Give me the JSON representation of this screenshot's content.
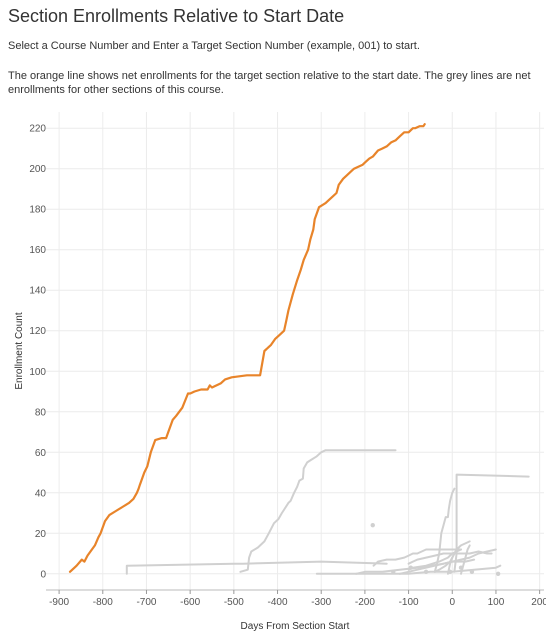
{
  "header": {
    "title": "Section Enrollments Relative to Start Date",
    "instructions": "Select a Course Number and Enter a Target Section Number (example, 001) to start.",
    "description": "The orange line shows net enrollments for the target section relative to the start date. The grey lines are net enrollments for other sections of this course."
  },
  "chart_data": {
    "type": "line",
    "xlabel": "Days From Section Start",
    "ylabel": "Enrollment Count",
    "xlim": [
      -930,
      210
    ],
    "ylim": [
      -8,
      228
    ],
    "x_ticks": [
      -900,
      -800,
      -700,
      -600,
      -500,
      -400,
      -300,
      -200,
      -100,
      0,
      100,
      200
    ],
    "y_ticks": [
      0,
      20,
      40,
      60,
      80,
      100,
      120,
      140,
      160,
      180,
      200,
      220
    ],
    "grid": true,
    "colors": {
      "target": "#E8842A",
      "other": "#d0d0d0",
      "grid": "#ececec"
    },
    "target_series": {
      "x": [
        -875,
        -860,
        -848,
        -842,
        -835,
        -825,
        -818,
        -810,
        -805,
        -795,
        -785,
        -770,
        -755,
        -740,
        -730,
        -722,
        -718,
        -715,
        -705,
        -698,
        -690,
        -680,
        -665,
        -655,
        -650,
        -640,
        -632,
        -625,
        -618,
        -605,
        -600,
        -590,
        -575,
        -560,
        -555,
        -550,
        -530,
        -520,
        -505,
        -470,
        -440,
        -430,
        -425,
        -420,
        -415,
        -405,
        -395,
        -385,
        -380,
        -375,
        -365,
        -355,
        -347,
        -340,
        -330,
        -325,
        -318,
        -315,
        -305,
        -290,
        -280,
        -275,
        -265,
        -260,
        -250,
        -240,
        -230,
        -225,
        -215,
        -205,
        -200,
        -190,
        -182,
        -170,
        -160,
        -150,
        -140,
        -130,
        -125,
        -120,
        -115,
        -110,
        -100,
        -95,
        -90,
        -85,
        -75,
        -70,
        -66,
        -63
      ],
      "y": [
        1,
        4,
        7,
        6,
        9,
        12,
        14,
        18,
        20,
        26,
        29,
        31,
        33,
        35,
        37,
        40,
        42,
        44,
        50,
        53,
        60,
        66,
        67,
        67,
        70,
        76,
        78,
        80,
        82,
        89,
        89,
        90,
        91,
        91,
        93,
        92,
        94,
        96,
        97,
        98,
        98,
        110,
        111,
        112,
        113,
        116,
        118,
        120,
        125,
        130,
        138,
        145,
        150,
        155,
        160,
        165,
        170,
        175,
        181,
        183,
        185,
        186,
        188,
        192,
        195,
        197,
        199,
        200,
        201,
        202,
        203,
        205,
        206,
        209,
        210,
        211,
        213,
        214,
        215,
        216,
        217,
        218,
        218,
        219,
        220,
        220,
        221,
        221,
        221,
        222
      ]
    },
    "other_series": [
      {
        "x": [
          -745,
          -745,
          -500,
          -480,
          -300,
          -150
        ],
        "y": [
          0,
          4,
          5,
          5,
          6,
          5
        ]
      },
      {
        "x": [
          -485,
          -468,
          -465,
          -460,
          -445,
          -430,
          -420,
          -408,
          -398,
          -390,
          -384,
          -375,
          -370,
          -362,
          -355,
          -350,
          -342,
          -340,
          -332,
          -325,
          -310,
          -300,
          -290,
          -130
        ],
        "y": [
          1,
          2,
          8,
          11,
          13,
          16,
          20,
          25,
          27,
          30,
          32,
          35,
          36,
          40,
          43,
          46,
          47,
          52,
          55,
          56,
          58,
          60,
          61,
          61
        ]
      },
      {
        "x": [
          5,
          10,
          10,
          175
        ],
        "y": [
          1,
          10,
          49,
          48
        ]
      },
      {
        "x": [
          -40,
          -35,
          -30,
          -25,
          -20,
          -15,
          -10,
          -8,
          -5,
          0,
          5
        ],
        "y": [
          1,
          5,
          10,
          20,
          24,
          28,
          28,
          32,
          36,
          40,
          42
        ]
      },
      {
        "x": [
          -180,
          -170,
          -150,
          -130,
          -110,
          -100,
          -90,
          -80,
          -70,
          -60,
          -40,
          -20,
          0,
          20
        ],
        "y": [
          4,
          6,
          7,
          7,
          8,
          9,
          10,
          10,
          11,
          12,
          12,
          12,
          12,
          12
        ]
      },
      {
        "x": [
          -100,
          -90,
          -80,
          -60,
          -40,
          -20,
          0,
          20,
          40,
          60,
          80,
          90
        ],
        "y": [
          5,
          6,
          7,
          8,
          9,
          10,
          10,
          10,
          10,
          11,
          10,
          10
        ]
      },
      {
        "x": [
          -120,
          -100,
          -80,
          -60,
          -40,
          -20,
          0,
          20,
          40,
          60,
          80,
          100
        ],
        "y": [
          0,
          1,
          2,
          3,
          4,
          5,
          6,
          7,
          8,
          10,
          11,
          12
        ]
      },
      {
        "x": [
          -220,
          -200,
          -160,
          -120,
          -80,
          -50,
          -20,
          0,
          30,
          50
        ],
        "y": [
          0,
          1,
          1,
          2,
          3,
          4,
          5,
          6,
          6,
          7
        ]
      },
      {
        "x": [
          -310,
          -200,
          -100,
          -50,
          0,
          50,
          100,
          110
        ],
        "y": [
          0,
          0,
          0,
          1,
          1,
          2,
          3,
          4
        ]
      },
      {
        "x": [
          -40,
          -30,
          -15,
          -5,
          0,
          10,
          20,
          30,
          40
        ],
        "y": [
          1,
          2,
          4,
          6,
          8,
          12,
          14,
          15,
          16
        ]
      },
      {
        "x": [
          -100,
          -90,
          -60,
          -30,
          -10,
          0,
          20
        ],
        "y": [
          2,
          3,
          4,
          6,
          8,
          10,
          12
        ]
      },
      {
        "x": [
          20,
          25,
          30,
          35,
          40
        ],
        "y": [
          0,
          4,
          8,
          12,
          14
        ]
      },
      {
        "x": [
          -10,
          -8,
          -5,
          0
        ],
        "y": [
          0,
          2,
          5,
          8
        ]
      }
    ],
    "other_points": [
      {
        "x": -182,
        "y": 24
      },
      {
        "x": -95,
        "y": 3
      },
      {
        "x": -60,
        "y": 1
      },
      {
        "x": -5,
        "y": 1
      },
      {
        "x": 20,
        "y": 3
      },
      {
        "x": 105,
        "y": 0
      },
      {
        "x": -135,
        "y": 1
      },
      {
        "x": 45,
        "y": 1
      }
    ]
  }
}
